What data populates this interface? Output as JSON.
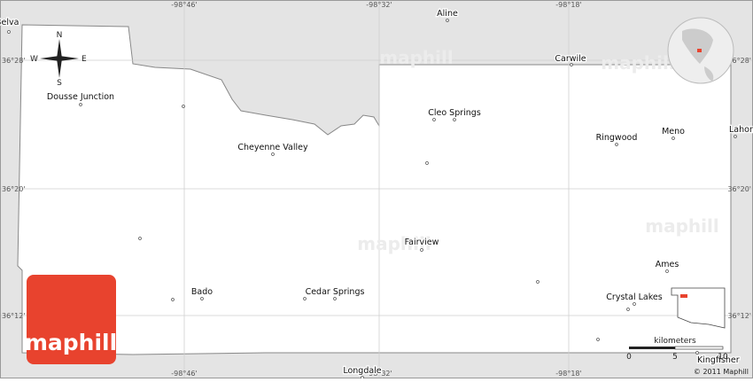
{
  "coordinates": {
    "longitudes": [
      "-98°46'",
      "-98°32'",
      "-98°18'"
    ],
    "latitudes": [
      "36°28'",
      "36°20'",
      "36°12'"
    ]
  },
  "places": [
    "Belva",
    "Aline",
    "Carwile",
    "Dousse Junction",
    "Cleo Springs",
    "Ringwood",
    "Meno",
    "Lahoma",
    "Cheyenne Valley",
    "Fairview",
    "Ames",
    "Bado",
    "Cedar Springs",
    "Crystal Lakes",
    "Kingfisher",
    "Longdale"
  ],
  "compass": {
    "north": "N",
    "south": "S",
    "east": "E",
    "west": "W"
  },
  "scale": {
    "unit": "kilometers",
    "ticks": [
      0,
      5,
      10
    ]
  },
  "watermark": "maphill",
  "logo": "maphill",
  "copyright": "© 2011 Maphill"
}
